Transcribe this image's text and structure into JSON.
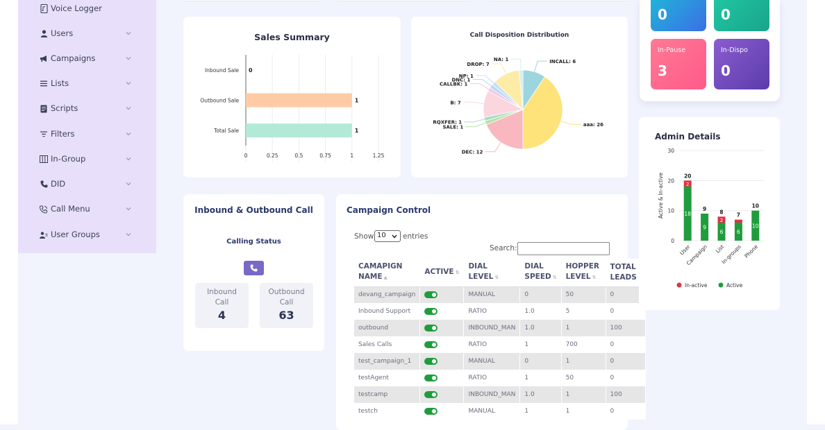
{
  "sidebar": {
    "items": [
      {
        "label": "Voice Logger",
        "icon": "file-audio-icon",
        "has_chevron": false
      },
      {
        "label": "Users",
        "icon": "user-icon",
        "has_chevron": true
      },
      {
        "label": "Campaigns",
        "icon": "megaphone-icon",
        "has_chevron": true
      },
      {
        "label": "Lists",
        "icon": "list-icon",
        "has_chevron": true
      },
      {
        "label": "Scripts",
        "icon": "script-icon",
        "has_chevron": true
      },
      {
        "label": "Filters",
        "icon": "filter-icon",
        "has_chevron": true
      },
      {
        "label": "In-Group",
        "icon": "columns-icon",
        "has_chevron": true
      },
      {
        "label": "DID",
        "icon": "phone-icon",
        "has_chevron": true
      },
      {
        "label": "Call Menu",
        "icon": "phone-volume-icon",
        "has_chevron": true
      },
      {
        "label": "User Groups",
        "icon": "users-icon",
        "has_chevron": true
      }
    ]
  },
  "status_tiles": [
    {
      "label": "",
      "value": "0",
      "color_from": "#1fb6d8",
      "color_to": "#3b6fe6"
    },
    {
      "label": "",
      "value": "0",
      "color_from": "#20c7a2",
      "color_to": "#1aa48b"
    },
    {
      "label": "In-Pause",
      "value": "3",
      "color_from": "#ff6f8f",
      "color_to": "#ff5a8a"
    },
    {
      "label": "In-Dispo",
      "value": "0",
      "color_from": "#8b5ccf",
      "color_to": "#5b3cab"
    }
  ],
  "sales_summary": {
    "title": "Sales Summary",
    "chart_data": {
      "type": "bar",
      "orientation": "horizontal",
      "categories": [
        "Inbound Sale",
        "Outbound Sale",
        "Total Sale"
      ],
      "values": [
        0,
        1,
        1
      ],
      "value_labels": [
        "0",
        "1",
        "1"
      ],
      "colors": [
        "#9ad0f5",
        "#ffcaa6",
        "#b2ead7"
      ],
      "xticks": [
        "0",
        "0.25",
        "0.5",
        "0.75",
        "1",
        "1.25"
      ],
      "xlim": [
        0,
        1.25
      ]
    }
  },
  "disposition": {
    "title": "Call Disposition Distribution",
    "chart_data": {
      "type": "pie",
      "slices": [
        {
          "label": "INCALL",
          "value": 6,
          "color": "#9dd5de"
        },
        {
          "label": "aaa",
          "value": 26,
          "color": "#fde37a"
        },
        {
          "label": "DEC",
          "value": 12,
          "color": "#f9b7bf"
        },
        {
          "label": "SALE",
          "value": 1,
          "color": "#b6e3a6"
        },
        {
          "label": "RQXFER",
          "value": 1,
          "color": "#a9dcc8"
        },
        {
          "label": "B",
          "value": 7,
          "color": "#fbd6df"
        },
        {
          "label": "CALLBK",
          "value": 1,
          "color": "#f3c7e5"
        },
        {
          "label": "DNC",
          "value": 1,
          "color": "#b9d8f7"
        },
        {
          "label": "NP",
          "value": 1,
          "color": "#c7dff6"
        },
        {
          "label": "DROP",
          "value": 7,
          "color": "#fdeca6"
        },
        {
          "label": "NA",
          "value": 1,
          "color": "#d5eef2"
        }
      ],
      "display_labels": [
        "INCALL: 6",
        "aaa: 26",
        "DEC: 12",
        "SALE: 1",
        "RQXFER: 1",
        "B: 7",
        "CALLBK: 1",
        "DNC: 1",
        "NP: 1",
        "DROP: 7",
        "NA: 1"
      ]
    }
  },
  "inbound_outbound": {
    "title": "Inbound & Outbound Call",
    "subtitle": "Calling Status",
    "inbound_label_1": "Inbound",
    "inbound_label_2": "Call",
    "inbound_value": "4",
    "outbound_label_1": "Outbound",
    "outbound_label_2": "Call",
    "outbound_value": "63"
  },
  "campaign_control": {
    "title": "Campaign Control",
    "show_label": "Show",
    "entries_value": "10",
    "entries_label": "entries",
    "search_label": "Search:",
    "search_value": "",
    "columns": [
      "CAMAPIGN NAME",
      "ACTIVE",
      "DIAL LEVEL",
      "DIAL SPEED",
      "HOPPER LEVEL",
      "TOTAL LEADS"
    ],
    "rows": [
      [
        "devang_campaign",
        "on",
        "MANUAL",
        "0",
        "50",
        "0"
      ],
      [
        "Inbound Support",
        "on",
        "RATIO",
        "1.0",
        "5",
        "0"
      ],
      [
        "outbound",
        "on",
        "INBOUND_MAN",
        "1.0",
        "1",
        "100"
      ],
      [
        "Sales Calls",
        "on",
        "RATIO",
        "1",
        "700",
        "0"
      ],
      [
        "test_campaign_1",
        "on",
        "MANUAL",
        "0",
        "1",
        "0"
      ],
      [
        "testAgent",
        "on",
        "RATIO",
        "1",
        "50",
        "0"
      ],
      [
        "testcamp",
        "on",
        "INBOUND_MAN",
        "1.0",
        "1",
        "100"
      ],
      [
        "testch",
        "on",
        "MANUAL",
        "1",
        "1",
        "0"
      ]
    ]
  },
  "admin_details": {
    "title": "Admin Details",
    "chart_data": {
      "type": "bar",
      "stacked": true,
      "categories": [
        "User",
        "Campaign",
        "List",
        "In-groups",
        "Phone"
      ],
      "series": [
        {
          "name": "Active",
          "values": [
            18,
            9,
            6,
            6,
            10
          ],
          "color": "#1f9d3c"
        },
        {
          "name": "In-active",
          "values": [
            2,
            0,
            2,
            1,
            0
          ],
          "color": "#dc3545"
        }
      ],
      "totals": [
        20,
        9,
        8,
        7,
        10
      ],
      "active_labels": [
        "18",
        "9",
        "6",
        "6",
        "10"
      ],
      "inactive_labels": [
        "2",
        "",
        "2",
        "",
        ""
      ],
      "total_labels": [
        "20",
        "9",
        "8",
        "7",
        "10"
      ],
      "ylabel": "Active & In-active",
      "yticks": [
        "0",
        "10",
        "20",
        "30"
      ],
      "ylim": [
        0,
        30
      ]
    }
  }
}
